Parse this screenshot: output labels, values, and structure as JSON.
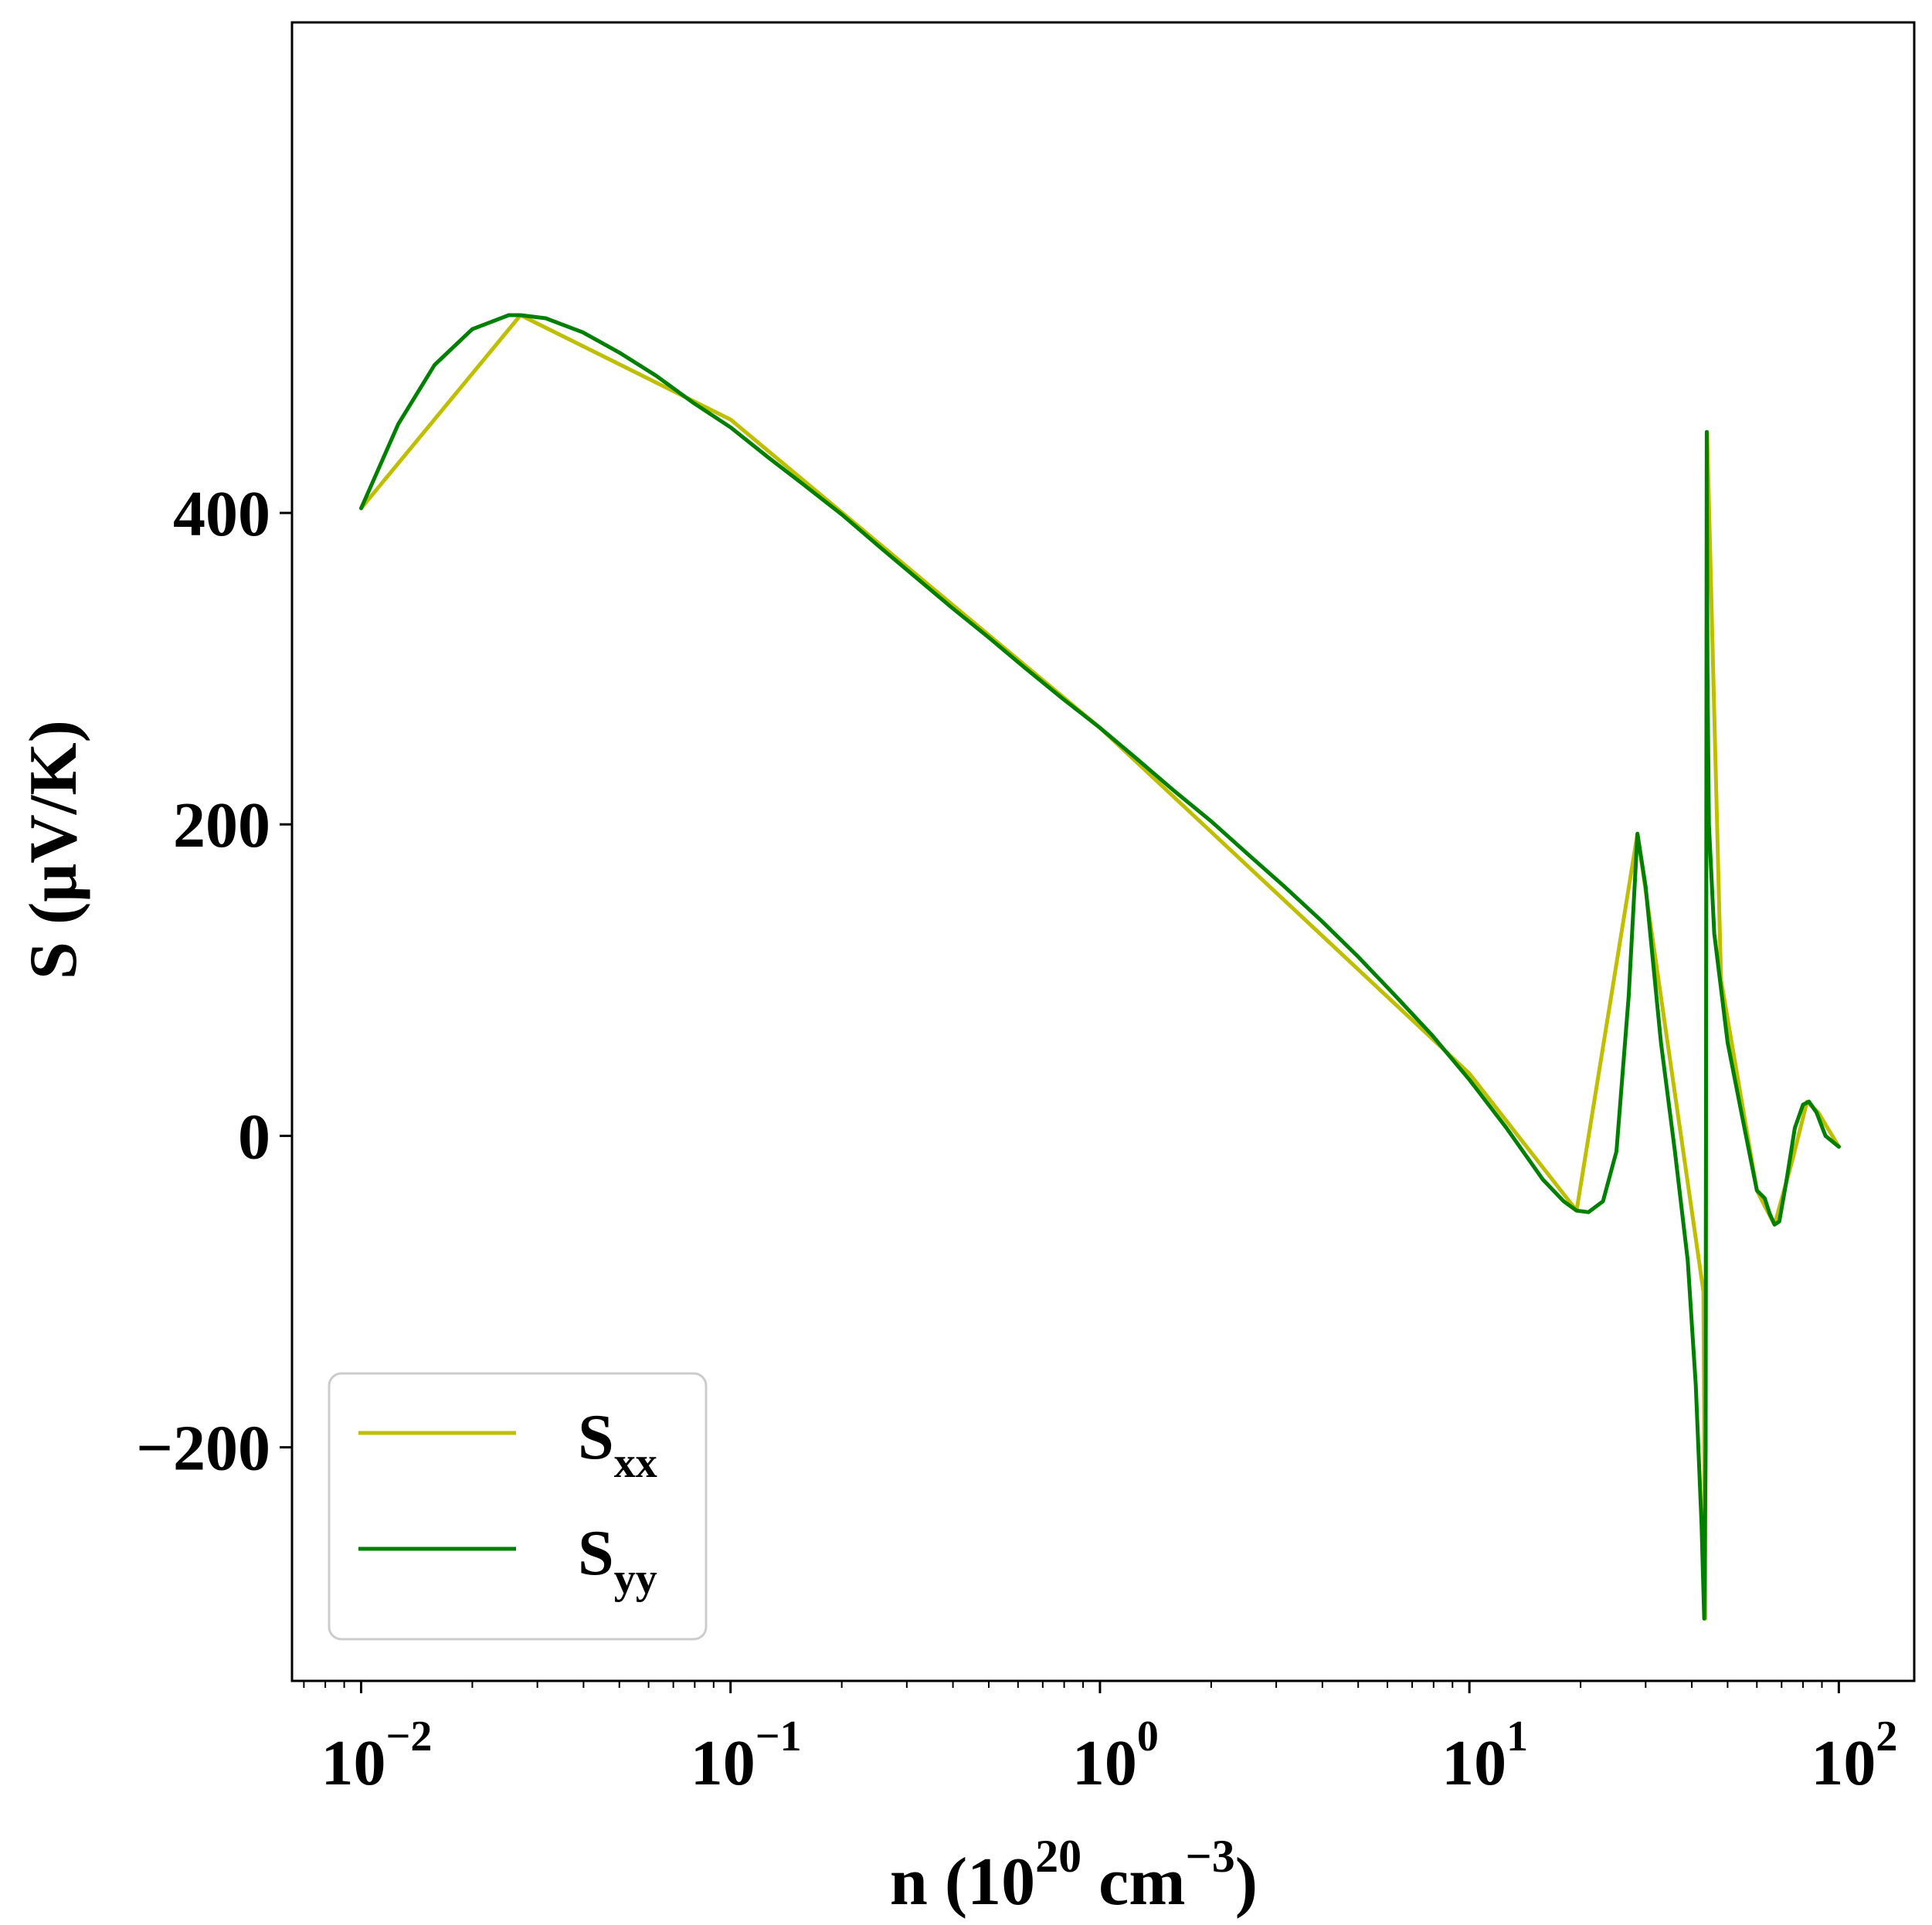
{
  "chart_data": {
    "type": "line",
    "title": "",
    "xlabel": {
      "prefix": "n (10",
      "exp1": "20",
      "middle": " cm",
      "exp2": "−3",
      "suffix": ")"
    },
    "ylabel": "S (μV/K)",
    "xscale": "log",
    "xlim": [
      0.0065,
      160
    ],
    "ylim": [
      -350,
      715
    ],
    "x_ticks": [
      {
        "base": "10",
        "exp": "−2",
        "value": 0.01
      },
      {
        "base": "10",
        "exp": "−1",
        "value": 0.1
      },
      {
        "base": "10",
        "exp": "0",
        "value": 1
      },
      {
        "base": "10",
        "exp": "1",
        "value": 10
      },
      {
        "base": "10",
        "exp": "2",
        "value": 100
      }
    ],
    "y_ticks": [
      {
        "label": "−200",
        "value": -200
      },
      {
        "label": "0",
        "value": 0
      },
      {
        "label": "200",
        "value": 200
      },
      {
        "label": "400",
        "value": 400
      }
    ],
    "grid": false,
    "legend_position": "lower-left",
    "colors": {
      "Sxx": "#bfbf00",
      "Syy": "#008000"
    },
    "series": [
      {
        "name": "S",
        "subscript": "xx",
        "color": "#bfbf00",
        "x": [
          0.01,
          0.027,
          0.1,
          1,
          10,
          19.5,
          28.5,
          43.0,
          43.5,
          44.0,
          48.0,
          60.0,
          63.0,
          67.0,
          75.0,
          82.0,
          88.0,
          100.0
        ],
        "y": [
          403,
          527,
          460,
          262,
          40,
          -48,
          194,
          -100,
          -310,
          452,
          100,
          -35,
          -45,
          -57,
          -15,
          22,
          15,
          -7
        ]
      },
      {
        "name": "S",
        "subscript": "yy",
        "color": "#008000",
        "x": [
          0.01,
          0.0126,
          0.0158,
          0.02,
          0.0251,
          0.027,
          0.0316,
          0.0398,
          0.05,
          0.063,
          0.079,
          0.1,
          0.126,
          0.158,
          0.2,
          0.251,
          0.316,
          0.398,
          0.5,
          0.63,
          0.79,
          1.0,
          1.26,
          1.58,
          2.0,
          2.51,
          3.16,
          3.98,
          5.0,
          6.3,
          7.9,
          10.0,
          12.6,
          15.8,
          18.0,
          19.5,
          21.0,
          23.0,
          25.0,
          27.0,
          28.5,
          30.0,
          33.0,
          36.0,
          39.0,
          41.0,
          42.5,
          43.2,
          43.6,
          43.9,
          44.1,
          44.5,
          46.0,
          50.0,
          55.0,
          60.0,
          63.0,
          65.0,
          67.0,
          69.0,
          72.0,
          76.0,
          80.0,
          83.0,
          87.0,
          92.0,
          100.0
        ],
        "y": [
          403,
          457,
          495,
          518,
          527,
          527,
          525,
          516,
          503,
          488,
          471,
          455,
          436,
          418,
          399,
          379,
          359,
          339,
          320,
          300,
          281,
          262,
          242,
          222,
          202,
          181,
          160,
          138,
          115,
          90,
          65,
          36,
          5,
          -28,
          -42,
          -48,
          -49,
          -42,
          -10,
          90,
          194,
          160,
          60,
          -10,
          -80,
          -160,
          -250,
          -310,
          -200,
          452,
          300,
          200,
          130,
          60,
          10,
          -35,
          -40,
          -50,
          -57,
          -55,
          -30,
          5,
          20,
          22,
          15,
          0,
          -7
        ]
      }
    ]
  }
}
